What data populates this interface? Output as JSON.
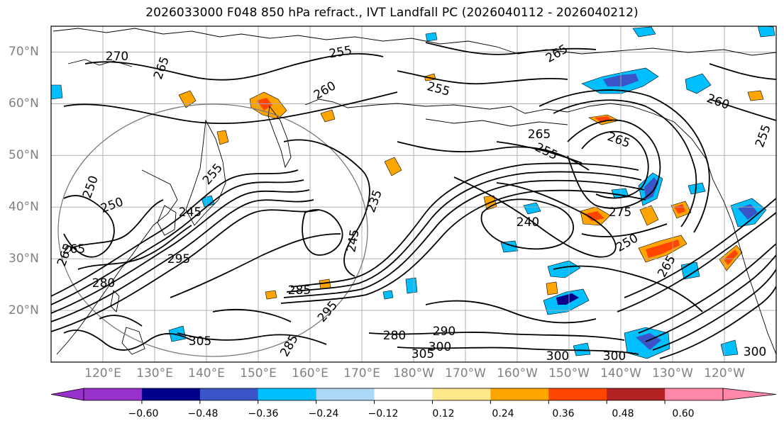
{
  "title": "2026033000 F048 850 hPa refract., IVT Landfall PC (2026040112 - 2026040212)",
  "map": {
    "projection": "plate-carree",
    "lon_range": [
      110,
      250
    ],
    "lat_range": [
      10,
      75
    ],
    "lat_labels": [
      "20°N",
      "30°N",
      "40°N",
      "50°N",
      "60°N",
      "70°N"
    ],
    "lon_labels": [
      "120°E",
      "130°E",
      "140°E",
      "150°E",
      "160°E",
      "170°E",
      "180°W",
      "170°W",
      "160°W",
      "150°W",
      "140°W",
      "130°W",
      "120°W"
    ],
    "contour_labels": [
      "270",
      "265",
      "255",
      "260",
      "255",
      "265",
      "265",
      "260",
      "255",
      "265",
      "255",
      "250",
      "250",
      "255",
      "245",
      "235",
      "245",
      "240",
      "265",
      "295",
      "280",
      "285",
      "295",
      "305",
      "290",
      "300",
      "305",
      "280",
      "300",
      "300",
      "300",
      "250",
      "265",
      "275",
      "265",
      "285"
    ]
  },
  "colorbar": {
    "colors": [
      "#9932cc",
      "#00008b",
      "#3a55c8",
      "#00bfff",
      "#add8f5",
      "#ffffff",
      "#ffe88a",
      "#ffa500",
      "#ff4500",
      "#b22222",
      "#ff88aa"
    ],
    "tick_labels": [
      "−0.60",
      "−0.48",
      "−0.36",
      "−0.24",
      "−0.12",
      "0.12",
      "0.24",
      "0.36",
      "0.48",
      "0.60"
    ]
  }
}
